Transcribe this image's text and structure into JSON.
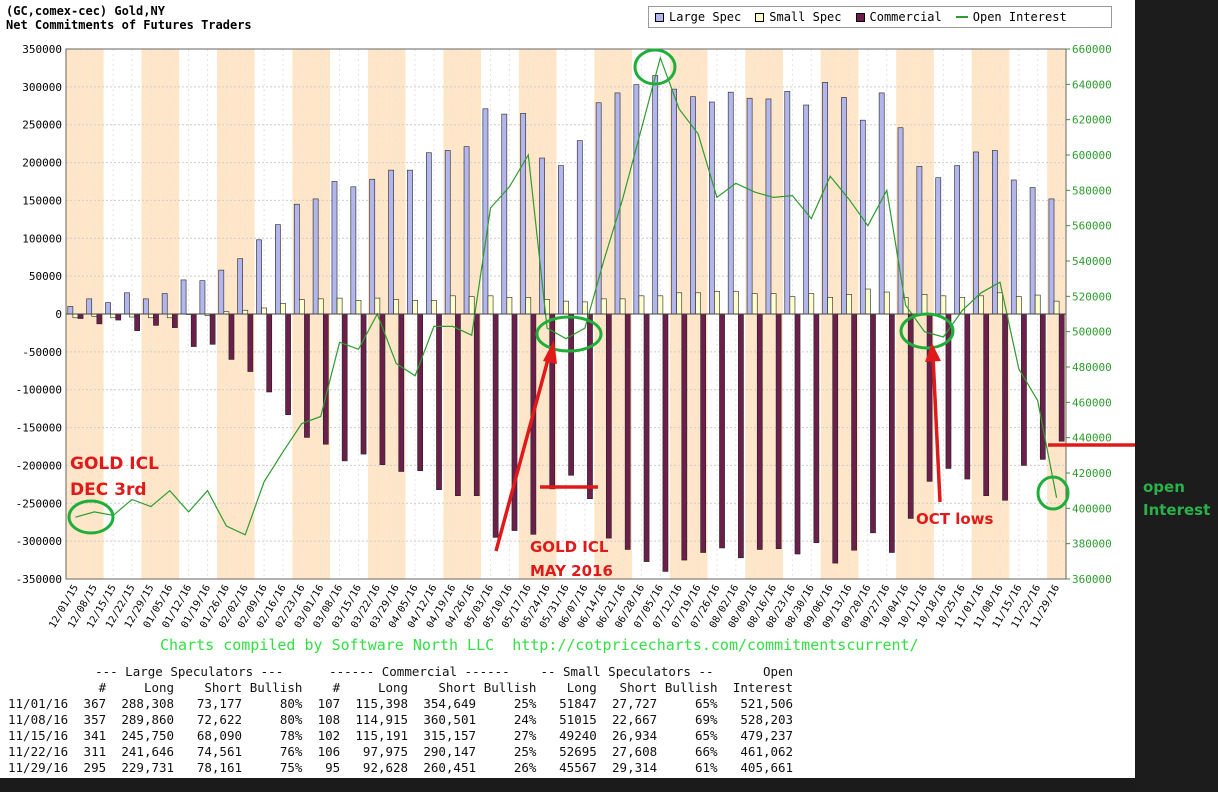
{
  "header": {
    "line1": "(GC,comex-cec) Gold,NY",
    "line2": "Net Commitments of Futures Traders"
  },
  "legend": [
    {
      "label": "Large Spec",
      "color": "#b3b6ec",
      "type": "box"
    },
    {
      "label": "Small Spec",
      "color": "#ffffcc",
      "type": "box"
    },
    {
      "label": "Commercial",
      "color": "#6b1f4a",
      "type": "box"
    },
    {
      "label": "Open Interest",
      "color": "#2e9c2e",
      "type": "line"
    }
  ],
  "chart_data": {
    "type": "bar",
    "x_ticks": [
      "12/01/15",
      "12/08/15",
      "12/15/15",
      "12/22/15",
      "12/29/15",
      "01/05/16",
      "01/12/16",
      "01/19/16",
      "01/26/16",
      "02/02/16",
      "02/09/16",
      "02/16/16",
      "02/23/16",
      "03/01/16",
      "03/08/16",
      "03/15/16",
      "03/22/16",
      "03/29/16",
      "04/05/16",
      "04/12/16",
      "04/19/16",
      "04/26/16",
      "05/03/16",
      "05/10/16",
      "05/17/16",
      "05/24/16",
      "05/31/16",
      "06/07/16",
      "06/14/16",
      "06/21/16",
      "06/28/16",
      "07/05/16",
      "07/12/16",
      "07/19/16",
      "07/26/16",
      "08/02/16",
      "08/09/16",
      "08/16/16",
      "08/23/16",
      "08/30/16",
      "09/06/16",
      "09/13/16",
      "09/20/16",
      "09/27/16",
      "10/04/16",
      "10/11/16",
      "10/18/16",
      "10/25/16",
      "11/01/16",
      "11/08/16",
      "11/15/16",
      "11/22/16",
      "11/29/16"
    ],
    "y_left": {
      "min": -350000,
      "max": 350000,
      "step": 50000
    },
    "y_right": {
      "min": 360000,
      "max": 660000,
      "step": 20000
    },
    "series": [
      {
        "name": "Large Spec",
        "axis": "left",
        "color": "#b3b6ec",
        "values": [
          10000,
          20000,
          15000,
          28000,
          20000,
          27000,
          45000,
          44000,
          58000,
          73000,
          98000,
          118000,
          145000,
          152000,
          175000,
          168000,
          178000,
          190000,
          190000,
          213000,
          216000,
          221000,
          271000,
          264000,
          265000,
          206000,
          196000,
          229000,
          279000,
          292000,
          303000,
          315000,
          297000,
          287000,
          280000,
          293000,
          285000,
          284000,
          294000,
          276000,
          306000,
          286000,
          256000,
          292000,
          246000,
          195000,
          180000,
          196000,
          214000,
          216000,
          177000,
          167000,
          152000
        ]
      },
      {
        "name": "Small Spec",
        "axis": "left",
        "color": "#ffffcc",
        "values": [
          -5000,
          -3000,
          -5000,
          -4000,
          -5000,
          -5000,
          0,
          -2000,
          3000,
          5000,
          8000,
          14000,
          19000,
          20000,
          21000,
          18000,
          21000,
          19000,
          18000,
          18000,
          24000,
          23000,
          24000,
          22000,
          22000,
          19000,
          17000,
          16000,
          20000,
          20000,
          24000,
          24000,
          28000,
          28000,
          30000,
          30000,
          27000,
          27000,
          23000,
          27000,
          22000,
          26000,
          33000,
          29000,
          22000,
          26000,
          24000,
          22000,
          24000,
          28000,
          23000,
          25000,
          17000
        ]
      },
      {
        "name": "Commercial",
        "axis": "left",
        "color": "#6b1f4a",
        "values": [
          -6000,
          -13000,
          -8000,
          -22000,
          -15000,
          -18000,
          -43000,
          -40000,
          -60000,
          -76000,
          -103000,
          -133000,
          -163000,
          -172000,
          -194000,
          -185000,
          -199000,
          -208000,
          -207000,
          -232000,
          -240000,
          -240000,
          -295000,
          -286000,
          -291000,
          -231000,
          -213000,
          -244000,
          -296000,
          -311000,
          -327000,
          -340000,
          -325000,
          -315000,
          -309000,
          -322000,
          -311000,
          -310000,
          -317000,
          -302000,
          -329000,
          -312000,
          -289000,
          -315000,
          -270000,
          -221000,
          -204000,
          -218000,
          -240000,
          -246000,
          -200000,
          -192000,
          -168000
        ]
      },
      {
        "name": "Open Interest",
        "axis": "right",
        "color": "#2e9c2e",
        "values": [
          395000,
          398000,
          396000,
          405000,
          401000,
          410000,
          398000,
          410000,
          390000,
          385000,
          415000,
          432000,
          448000,
          452000,
          494000,
          490000,
          510000,
          482000,
          475000,
          503000,
          503000,
          498000,
          570000,
          582000,
          600000,
          502000,
          496000,
          502000,
          540000,
          575000,
          615000,
          655000,
          626000,
          612000,
          576000,
          584000,
          579000,
          576000,
          577000,
          564000,
          588000,
          575000,
          560000,
          580000,
          515000,
          500000,
          497000,
          512000,
          522000,
          528000,
          479000,
          461000,
          406000
        ]
      }
    ]
  },
  "annotations": {
    "dec_label_1": "GOLD ICL",
    "dec_label_2": "DEC 3rd",
    "may_label_1": "GOLD ICL",
    "may_label_2": "MAY 2016",
    "oct_label": "OCT lows",
    "oi_label_1": "open",
    "oi_label_2": "Interest"
  },
  "credit": "Charts compiled by Software North LLC  http://cotpricecharts.com/commitmentscurrent/",
  "table": {
    "header1": [
      "",
      "--- Large Speculators ---",
      "",
      "",
      "",
      "------ Commercial ------",
      "",
      "",
      "",
      "-- Small Speculators --",
      "",
      "",
      "Open"
    ],
    "header2": [
      "",
      "#",
      "Long",
      "Short",
      "Bullish",
      "#",
      "Long",
      "Short",
      "Bullish",
      "Long",
      "Short",
      "Bullish",
      "Interest"
    ],
    "rows": [
      [
        "11/01/16",
        "367",
        "288,308",
        "73,177",
        "80%",
        "107",
        "115,398",
        "354,649",
        "25%",
        "51847",
        "27,727",
        "65%",
        "521,506"
      ],
      [
        "11/08/16",
        "357",
        "289,860",
        "72,622",
        "80%",
        "108",
        "114,915",
        "360,501",
        "24%",
        "51015",
        "22,667",
        "69%",
        "528,203"
      ],
      [
        "11/15/16",
        "341",
        "245,750",
        "68,090",
        "78%",
        "102",
        "115,191",
        "315,157",
        "27%",
        "49240",
        "26,934",
        "65%",
        "479,237"
      ],
      [
        "11/22/16",
        "311",
        "241,646",
        "74,561",
        "76%",
        "106",
        "97,975",
        "290,147",
        "25%",
        "52695",
        "27,608",
        "66%",
        "461,062"
      ],
      [
        "11/29/16",
        "295",
        "229,731",
        "78,161",
        "75%",
        "95",
        "92,628",
        "260,451",
        "26%",
        "45567",
        "29,314",
        "61%",
        "405,661"
      ]
    ]
  }
}
